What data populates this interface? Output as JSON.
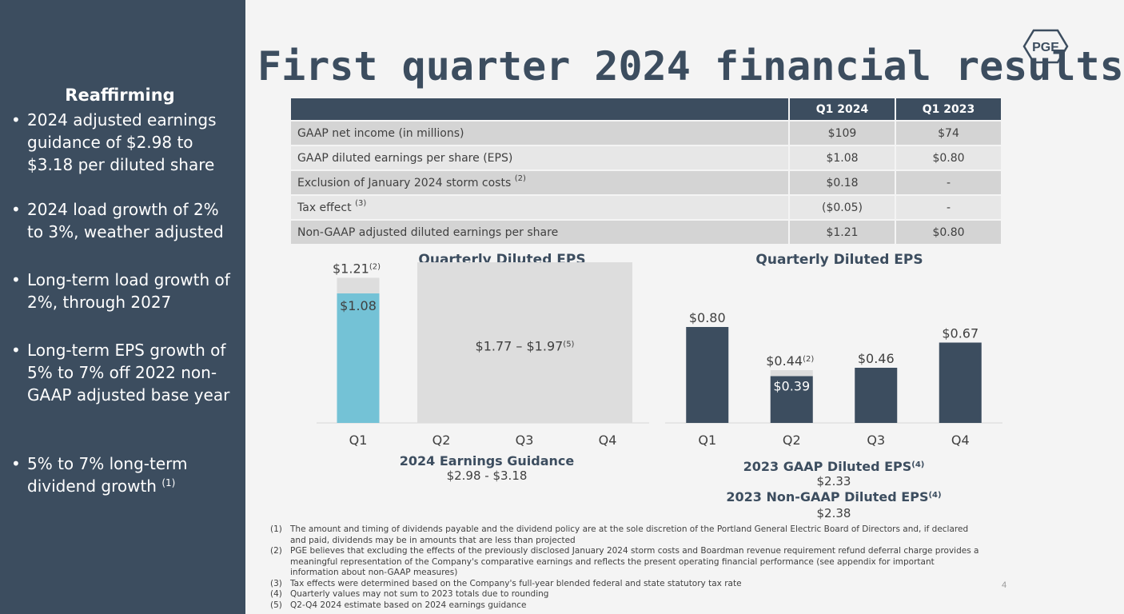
{
  "title": "First quarter 2024 financial results",
  "logo_text": "PGE",
  "sidebar": {
    "heading": "Reaffirming",
    "items": [
      {
        "text": "2024 adjusted earnings guidance of $2.98 to $3.18 per diluted share",
        "sup": ""
      },
      {
        "text": "2024 load growth of 2% to 3%, weather adjusted",
        "sup": ""
      },
      {
        "text": "Long-term load growth of 2%, through 2027",
        "sup": ""
      },
      {
        "text": "Long-term EPS growth of 5% to 7% off 2022 non-GAAP adjusted base year",
        "sup": ""
      },
      {
        "text": "5% to 7% long-term dividend growth",
        "sup": "(1)"
      }
    ]
  },
  "table": {
    "headers": [
      "",
      "Q1 2024",
      "Q1 2023"
    ],
    "rows": [
      {
        "label": "GAAP net income (in millions)",
        "sup": "",
        "q1_2024": "$109",
        "q1_2023": "$74"
      },
      {
        "label": "GAAP diluted earnings per share (EPS)",
        "sup": "",
        "q1_2024": "$1.08",
        "q1_2023": "$0.80"
      },
      {
        "label": "Exclusion of January 2024 storm costs",
        "sup": "(2)",
        "q1_2024": "$0.18",
        "q1_2023": "-"
      },
      {
        "label": "Tax effect",
        "sup": "(3)",
        "q1_2024": "($0.05)",
        "q1_2023": "-"
      },
      {
        "label": "Non-GAAP adjusted diluted earnings per share",
        "sup": "",
        "q1_2024": "$1.21",
        "q1_2023": "$0.80"
      }
    ]
  },
  "colors": {
    "navy": "#3c4d5f",
    "light_blue": "#74c2d6",
    "gray": "#dddddd",
    "background": "#f4f4f4"
  },
  "chart_data": [
    {
      "type": "bar",
      "title": "Quarterly Diluted EPS",
      "categories": [
        "Q1",
        "Q2",
        "Q3",
        "Q4"
      ],
      "series": [
        {
          "name": "GAAP",
          "values": [
            1.08,
            null,
            null,
            null
          ]
        },
        {
          "name": "Non-GAAP adjusted",
          "values": [
            1.21,
            null,
            null,
            null
          ]
        }
      ],
      "labels": {
        "gaap_q1": "$1.08",
        "adjusted_q1": "$1.21",
        "adjusted_q1_sup": "(2)"
      },
      "guidance_range": {
        "categories": [
          "Q2",
          "Q3",
          "Q4"
        ],
        "low": 1.77,
        "high": 1.97,
        "label": "$1.77 – $1.97",
        "sup": "(5)"
      },
      "footer": {
        "title": "2024 Earnings Guidance",
        "value": "$2.98 - $3.18"
      }
    },
    {
      "type": "bar",
      "title": "Quarterly Diluted EPS",
      "categories": [
        "Q1",
        "Q2",
        "Q3",
        "Q4"
      ],
      "series": [
        {
          "name": "GAAP",
          "values": [
            0.8,
            0.39,
            0.46,
            0.67
          ]
        },
        {
          "name": "Non-GAAP adjusted",
          "values": [
            null,
            0.44,
            null,
            null
          ]
        }
      ],
      "labels": [
        "$0.80",
        "$0.39",
        "$0.46",
        "$0.67"
      ],
      "adjusted_label": {
        "category": "Q2",
        "text": "$0.44",
        "sup": "(2)"
      },
      "footer": {
        "gaap_title": "2023 GAAP Diluted EPS",
        "gaap_sup": "(4)",
        "gaap_value": "$2.33",
        "nongaap_title": "2023 Non-GAAP Diluted EPS",
        "nongaap_sup": "(4)",
        "nongaap_value": "$2.38"
      }
    }
  ],
  "footnotes": [
    {
      "n": "(1)",
      "text": "The amount and timing of dividends payable and the dividend policy are at the sole discretion of the Portland General Electric Board of Directors and, if declared and paid, dividends may be in amounts that are less than projected"
    },
    {
      "n": "(2)",
      "text": "PGE believes that excluding the effects of the previously disclosed January 2024 storm costs and Boardman revenue requirement refund deferral charge provides a meaningful representation of the Company's comparative earnings and reflects the present operating financial performance (see appendix for important information about non-GAAP measures)"
    },
    {
      "n": "(3)",
      "text": "Tax effects were determined based on the Company's full-year blended federal and state statutory tax rate"
    },
    {
      "n": "(4)",
      "text": "Quarterly values may not sum to 2023 totals due to rounding"
    },
    {
      "n": "(5)",
      "text": "Q2-Q4 2024 estimate based on 2024 earnings guidance"
    }
  ],
  "page_number": "4"
}
